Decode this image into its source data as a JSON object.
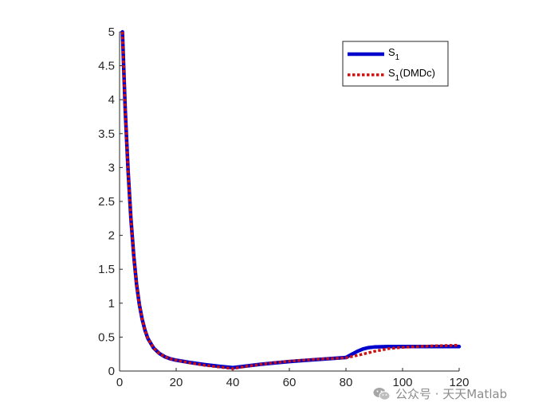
{
  "chart_data": {
    "type": "line",
    "title": "",
    "xlabel": "",
    "ylabel": "",
    "xlim": [
      0,
      120
    ],
    "ylim": [
      0,
      5
    ],
    "xticks": [
      0,
      20,
      40,
      60,
      80,
      100,
      120
    ],
    "yticks": [
      0,
      0.5,
      1,
      1.5,
      2,
      2.5,
      3,
      3.5,
      4,
      4.5,
      5
    ],
    "xtick_labels": [
      "0",
      "20",
      "40",
      "60",
      "80",
      "100",
      "120"
    ],
    "ytick_labels": [
      "0",
      "0.5",
      "1",
      "1.5",
      "2",
      "2.5",
      "3",
      "3.5",
      "4",
      "4.5",
      "5"
    ],
    "grid": false,
    "legend_position": "top-right",
    "series": [
      {
        "label_base": "S",
        "label_sub": "1",
        "label_suffix": "",
        "color": "#0000cc",
        "style": "solid",
        "x": [
          1,
          2,
          3,
          4,
          5,
          6,
          7,
          8,
          9,
          10,
          12,
          14,
          16,
          18,
          20,
          25,
          30,
          35,
          40,
          45,
          50,
          55,
          60,
          65,
          70,
          75,
          80,
          82,
          84,
          86,
          88,
          90,
          95,
          100,
          110,
          120
        ],
        "y": [
          5.0,
          3.85,
          2.95,
          2.25,
          1.7,
          1.28,
          0.98,
          0.76,
          0.6,
          0.48,
          0.34,
          0.26,
          0.21,
          0.18,
          0.16,
          0.125,
          0.095,
          0.07,
          0.05,
          0.075,
          0.1,
          0.12,
          0.14,
          0.155,
          0.17,
          0.185,
          0.2,
          0.245,
          0.29,
          0.325,
          0.345,
          0.355,
          0.36,
          0.36,
          0.36,
          0.36
        ]
      },
      {
        "label_base": "S",
        "label_sub": "1",
        "label_suffix": "(DMDc)",
        "color": "#cc1111",
        "style": "dotted",
        "x": [
          1,
          2,
          3,
          4,
          5,
          6,
          7,
          8,
          9,
          10,
          12,
          14,
          16,
          18,
          20,
          25,
          30,
          35,
          40,
          45,
          50,
          55,
          60,
          65,
          70,
          75,
          80,
          85,
          90,
          95,
          100,
          110,
          120
        ],
        "y": [
          5.0,
          3.85,
          2.95,
          2.25,
          1.7,
          1.28,
          0.98,
          0.76,
          0.6,
          0.48,
          0.34,
          0.26,
          0.21,
          0.18,
          0.16,
          0.12,
          0.085,
          0.06,
          0.035,
          0.07,
          0.1,
          0.125,
          0.145,
          0.16,
          0.175,
          0.185,
          0.195,
          0.24,
          0.29,
          0.33,
          0.35,
          0.37,
          0.38
        ]
      }
    ]
  },
  "watermark": {
    "text": "公众号 · 天天Matlab",
    "icon": "wechat-icon"
  }
}
